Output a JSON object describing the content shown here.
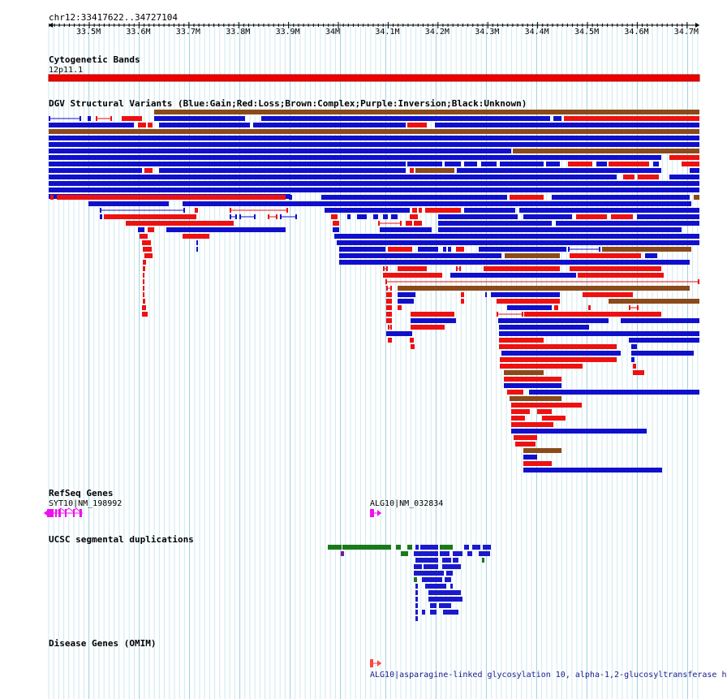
{
  "ruler": {
    "location": "chr12:33417622..34727104",
    "ticks": [
      "33.5M",
      "33.6M",
      "33.7M",
      "33.8M",
      "33.9M",
      "34M",
      "34.1M",
      "34.2M",
      "34.3M",
      "34.4M",
      "34.5M",
      "34.6M",
      "34.7M"
    ]
  },
  "tracks": {
    "cyto": {
      "title": "Cytogenetic Bands",
      "band": "12p11.1",
      "color": "#ee0000"
    },
    "dgv": {
      "title": "DGV Structural Variants (Blue:Gain;Red:Loss;Brown:Complex;Purple:Inversion;Black:Unknown)",
      "colors": {
        "gain": "#1010cc",
        "loss": "#ee1111",
        "complex": "#8b4a1a"
      }
    },
    "refseq": {
      "title": "RefSeq Genes",
      "genes": [
        {
          "label": "SYT10|NM_198992"
        },
        {
          "label": "ALG10|NM_032834"
        }
      ],
      "color": "#ee11ee"
    },
    "segdup": {
      "title": "UCSC segmental duplications"
    },
    "omim": {
      "title": "Disease Genes (OMIM)",
      "gene_label": "ALG10|asparagine-linked glycosylation 10, alpha-1,2-glucosyltransferase h",
      "color": "#ff4444"
    }
  }
}
